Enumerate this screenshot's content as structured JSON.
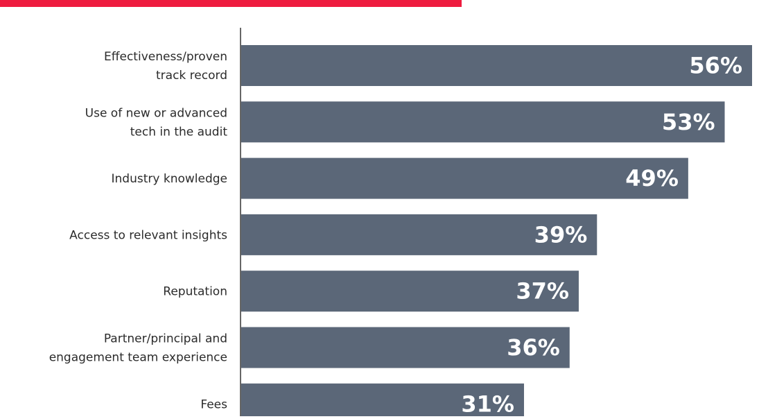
{
  "colors": {
    "bar": "#5b6778",
    "accent": "#ee1c3f",
    "value_text": "#ffffff",
    "label_text": "#2b2b2b"
  },
  "chart_data": {
    "type": "bar",
    "orientation": "horizontal",
    "categories": [
      [
        "Effectiveness/proven",
        "track record"
      ],
      [
        "Use of new or advanced",
        "tech in the audit"
      ],
      [
        "Industry knowledge"
      ],
      [
        "Access to relevant insights"
      ],
      [
        "Reputation"
      ],
      [
        "Partner/principal and",
        "engagement team experience"
      ],
      [
        "Fees"
      ]
    ],
    "values": [
      56,
      53,
      49,
      39,
      37,
      36,
      31
    ],
    "value_labels": [
      "56%",
      "53%",
      "49%",
      "39%",
      "37%",
      "36%",
      "31%"
    ],
    "unit": "%",
    "xlim": [
      0,
      56
    ],
    "grid": false,
    "legend": "none"
  }
}
